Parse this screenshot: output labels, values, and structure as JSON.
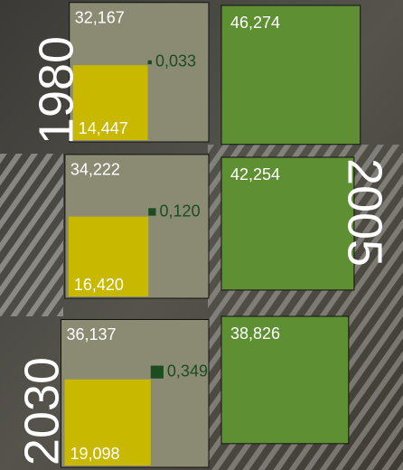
{
  "chart_data": {
    "type": "square",
    "categories": [
      "1980",
      "2005",
      "2030"
    ],
    "series": [
      {
        "color": "#8b8a72",
        "values": [
          32.167,
          34.222,
          36.137
        ],
        "value_labels": [
          "32,167",
          "34,222",
          "36,137"
        ]
      },
      {
        "color": "#c8b900",
        "values": [
          14.447,
          16.42,
          19.098
        ],
        "value_labels": [
          "14,447",
          "16,420",
          "19,098"
        ]
      },
      {
        "color": "#1b4d20",
        "values": [
          0.033,
          0.12,
          0.349
        ],
        "value_labels": [
          "0,033",
          "0,120",
          "0,349"
        ]
      },
      {
        "color": "#5f8f33",
        "values": [
          46.274,
          42.254,
          38.826
        ],
        "value_labels": [
          "46,274",
          "42,254",
          "38,826"
        ]
      }
    ]
  }
}
